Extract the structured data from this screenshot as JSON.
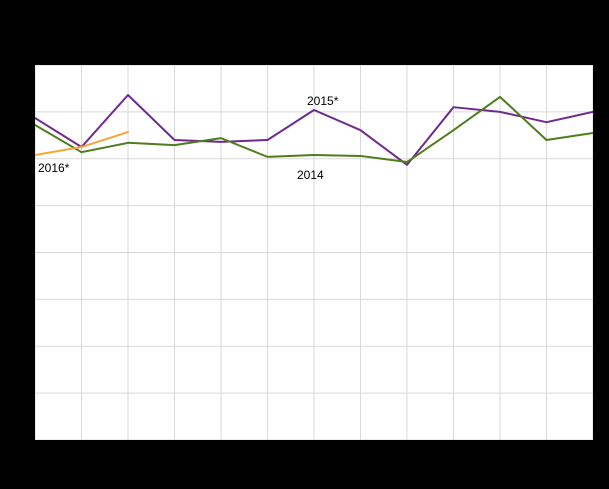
{
  "chart_data": {
    "type": "line",
    "x": [
      1,
      2,
      3,
      4,
      5,
      6,
      7,
      8,
      9,
      10,
      11,
      12,
      13
    ],
    "xlim": [
      1,
      13
    ],
    "ylim": [
      0,
      8
    ],
    "grid": true,
    "grid_color": "#d9d9d9",
    "background": "#ffffff",
    "outer_background": "#000000",
    "title": "",
    "xlabel": "",
    "ylabel": "",
    "legend_position": "inline-labels",
    "series": [
      {
        "name": "2015*",
        "color": "#6e2a8e",
        "values": [
          6.87,
          6.25,
          7.36,
          6.4,
          6.36,
          6.4,
          7.04,
          6.61,
          5.87,
          7.1,
          7.0,
          6.78,
          7.0
        ]
      },
      {
        "name": "2014",
        "color": "#4e7d1c",
        "values": [
          6.72,
          6.14,
          6.34,
          6.29,
          6.44,
          6.04,
          6.08,
          6.06,
          5.93,
          6.61,
          7.32,
          6.4,
          6.55
        ]
      },
      {
        "name": "2016*",
        "color": "#f2a838",
        "values": [
          6.08,
          6.25,
          6.57
        ]
      }
    ]
  }
}
